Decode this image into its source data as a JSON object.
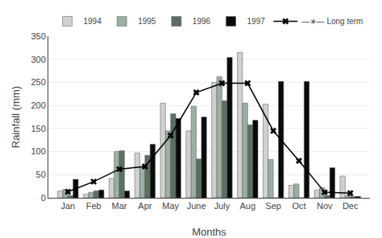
{
  "chart_data": {
    "type": "bar",
    "xlabel": "Months",
    "ylabel": "Rainfall (mm)",
    "categories": [
      "Jan",
      "Feb",
      "Mar",
      "Apr",
      "May",
      "June",
      "July",
      "Aug",
      "Sep",
      "Oct",
      "Nov",
      "Dec"
    ],
    "series": [
      {
        "name": "1994",
        "color": "#d0d0d0",
        "values": [
          15,
          8,
          42,
          97,
          205,
          145,
          250,
          315,
          203,
          27,
          17,
          47
        ]
      },
      {
        "name": "1995",
        "color": "#9ab0a0",
        "values": [
          18,
          12,
          100,
          68,
          145,
          198,
          262,
          205,
          83,
          30,
          22,
          5
        ]
      },
      {
        "name": "1996",
        "color": "#5a7060",
        "values": [
          5,
          15,
          102,
          92,
          182,
          84,
          210,
          158,
          0,
          0,
          5,
          3
        ]
      },
      {
        "name": "1997",
        "color": "#0a0a0a",
        "values": [
          40,
          17,
          15,
          116,
          172,
          175,
          304,
          168,
          252,
          252,
          65,
          3
        ]
      },
      {
        "name": "—∗— Long term",
        "type": "line",
        "color": "#000000",
        "marker": "x",
        "line_style": "solid",
        "values": [
          13,
          35,
          62,
          68,
          135,
          228,
          248,
          248,
          145,
          80,
          12,
          10
        ]
      }
    ],
    "ylim": [
      0,
      350
    ],
    "yticks": [
      0,
      50,
      100,
      150,
      200,
      250,
      300,
      350
    ],
    "grid": true,
    "legend": "top"
  }
}
